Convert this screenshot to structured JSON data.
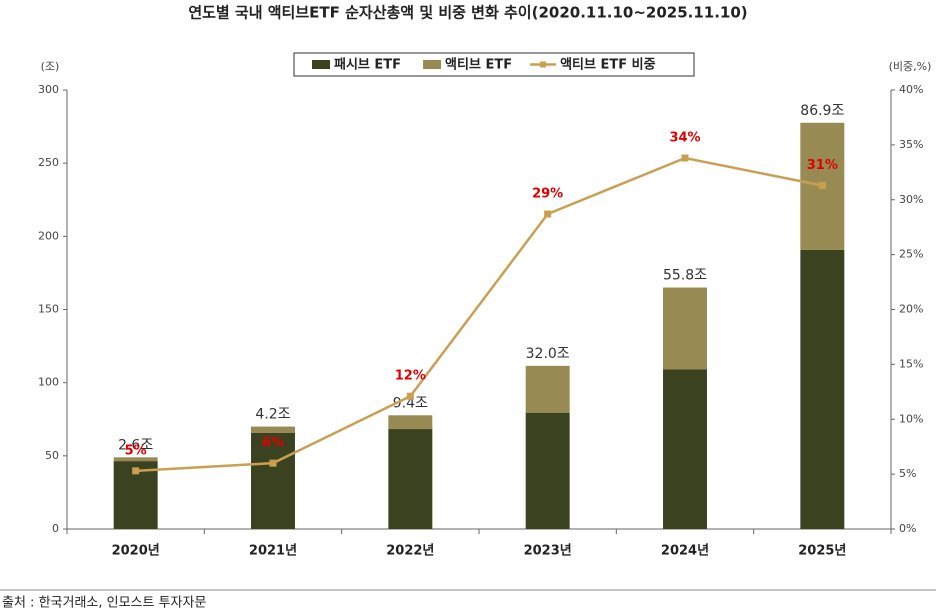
{
  "chart_data": {
    "type": "bar",
    "stacked": true,
    "title": "연도별 국내 액티브ETF 순자산총액 및 비중 변화 추이(2020.11.10~2025.11.10)",
    "y_label": "(조)",
    "y2_label": "(비중,%)",
    "categories": [
      "2020년",
      "2021년",
      "2022년",
      "2023년",
      "2024년",
      "2025년"
    ],
    "series": [
      {
        "name": "패시브 ETF",
        "color": "#3b4220",
        "values": [
          46.4,
          65.8,
          68.3,
          79.5,
          109.2,
          190.7
        ]
      },
      {
        "name": "액티브 ETF",
        "color": "#978a52",
        "values": [
          2.6,
          4.2,
          9.4,
          32.0,
          55.8,
          86.9
        ],
        "value_labels": [
          "2.6조",
          "4.2조",
          "9.4조",
          "32.0조",
          "55.8조",
          "86.9조"
        ]
      },
      {
        "name": "액티브 ETF 비중",
        "color": "#c9a052",
        "type": "line",
        "axis": "y2",
        "values": [
          5.3,
          6.0,
          12.1,
          28.7,
          33.8,
          31.3
        ],
        "value_labels": [
          "5%",
          "6%",
          "12%",
          "29%",
          "34%",
          "31%"
        ],
        "label_color": "#e00000"
      }
    ],
    "ylim": [
      0,
      300
    ],
    "yticks": [
      0,
      50,
      100,
      150,
      200,
      250,
      300
    ],
    "y2lim": [
      0,
      40
    ],
    "y2ticks": [
      {
        "value": 0,
        "label": "0%"
      },
      {
        "value": 5,
        "label": "5%"
      },
      {
        "value": 10,
        "label": "10%"
      },
      {
        "value": 15,
        "label": "15%"
      },
      {
        "value": 20,
        "label": "20%"
      },
      {
        "value": 25,
        "label": "25%"
      },
      {
        "value": 30,
        "label": "30%"
      },
      {
        "value": 35,
        "label": "35%"
      },
      {
        "value": 40,
        "label": "40%"
      }
    ],
    "grid": false,
    "legend": "top",
    "source": "출처 : 한국거래소, 인모스트 투자자문"
  }
}
